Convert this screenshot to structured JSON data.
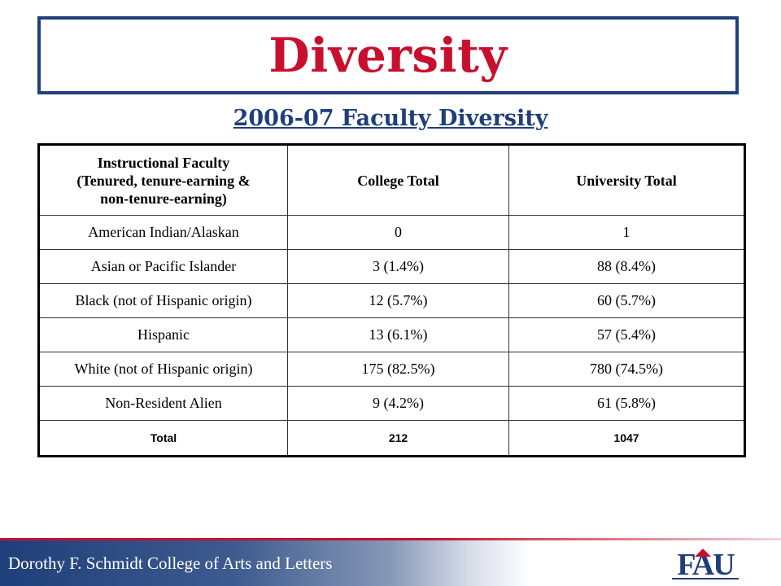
{
  "slide": {
    "title": "Diversity",
    "subtitle": "2006-07 Faculty Diversity"
  },
  "table": {
    "headers": [
      [
        "Instructional Faculty",
        "(Tenured, tenure-earning &",
        "non-tenure-earning)"
      ],
      "College Total",
      "University Total"
    ],
    "rows": [
      [
        "American Indian/Alaskan",
        "0",
        "1"
      ],
      [
        "Asian or Pacific Islander",
        "3 (1.4%)",
        "88 (8.4%)"
      ],
      [
        "Black (not of Hispanic origin)",
        "12 (5.7%)",
        "60 (5.7%)"
      ],
      [
        "Hispanic",
        "13 (6.1%)",
        "57 (5.4%)"
      ],
      [
        "White (not of Hispanic origin)",
        "175 (82.5%)",
        "780 (74.5%)"
      ],
      [
        "Non-Resident Alien",
        "9 (4.2%)",
        "61 (5.8%)"
      ]
    ],
    "total_row": [
      "Total",
      "212",
      "1047"
    ]
  },
  "footer": {
    "college_name": "Dorothy F. Schmidt College of Arts and Letters",
    "logo_text": "FAU"
  },
  "colors": {
    "title": "#c8102e",
    "subtitle": "#1f3f7a",
    "border_navy": "#1f3f7a",
    "footer_red": "#c8102e"
  }
}
